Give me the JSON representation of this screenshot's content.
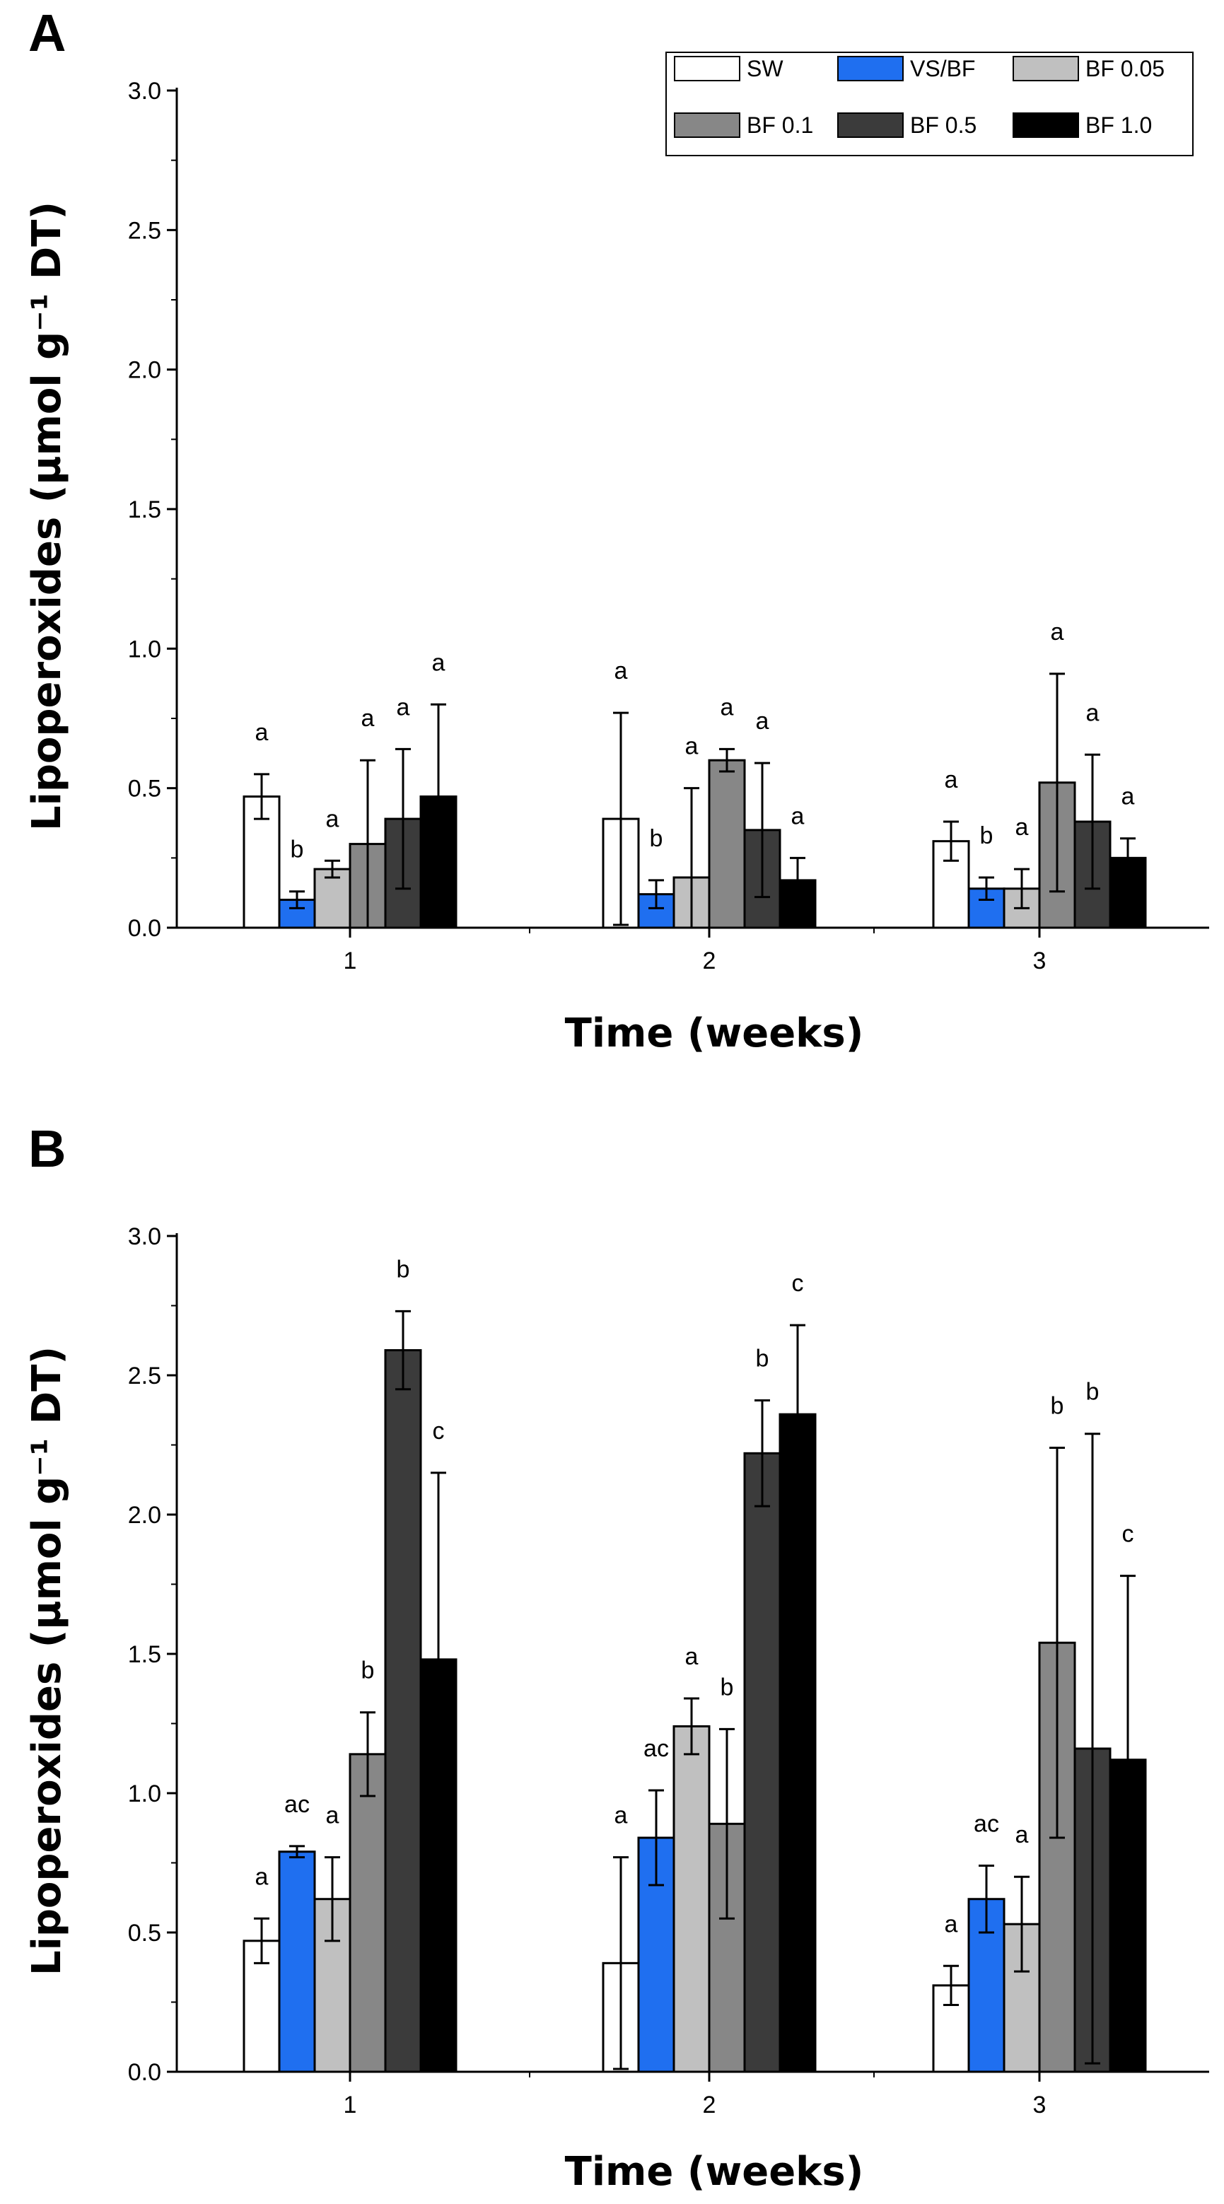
{
  "chart_data": [
    {
      "panel": "A",
      "type": "bar",
      "xlabel": "Time (weeks)",
      "ylabel": "Lipoperoxides (µmol g⁻¹ DT)",
      "categories": [
        "1",
        "2",
        "3"
      ],
      "ylim": [
        0,
        3.0
      ],
      "yticks": [
        "0.0",
        "0.5",
        "1.0",
        "1.5",
        "2.0",
        "2.5",
        "3.0"
      ],
      "legend_position": "top-right",
      "series": [
        {
          "name": "SW",
          "color": "#ffffff",
          "values": [
            0.47,
            0.39,
            0.31
          ],
          "errors": [
            0.08,
            0.38,
            0.07
          ],
          "labels": [
            "a",
            "a",
            "a"
          ]
        },
        {
          "name": "VS/BF",
          "color": "#1f6ff0",
          "values": [
            0.1,
            0.12,
            0.14
          ],
          "errors": [
            0.03,
            0.05,
            0.04
          ],
          "labels": [
            "b",
            "b",
            "b"
          ]
        },
        {
          "name": "BF 0.05",
          "color": "#c0c0c0",
          "values": [
            0.21,
            0.18,
            0.14
          ],
          "errors": [
            0.03,
            0.32,
            0.07
          ],
          "labels": [
            "a",
            "a",
            "a"
          ]
        },
        {
          "name": "BF 0.1",
          "color": "#878787",
          "values": [
            0.3,
            0.6,
            0.52
          ],
          "errors": [
            0.3,
            0.04,
            0.39
          ],
          "labels": [
            "a",
            "a",
            "a"
          ]
        },
        {
          "name": "BF 0.5",
          "color": "#3b3b3b",
          "values": [
            0.39,
            0.35,
            0.38
          ],
          "errors": [
            0.25,
            0.24,
            0.24
          ],
          "labels": [
            "a",
            "a",
            "a"
          ]
        },
        {
          "name": "BF 1.0",
          "color": "#000000",
          "values": [
            0.47,
            0.17,
            0.25
          ],
          "errors": [
            0.33,
            0.08,
            0.07
          ],
          "labels": [
            "a",
            "a",
            "a"
          ]
        }
      ]
    },
    {
      "panel": "B",
      "type": "bar",
      "xlabel": "Time (weeks)",
      "ylabel": "Lipoperoxides (µmol g⁻¹ DT)",
      "categories": [
        "1",
        "2",
        "3"
      ],
      "ylim": [
        0,
        3.0
      ],
      "yticks": [
        "0.0",
        "0.5",
        "1.0",
        "1.5",
        "2.0",
        "2.5",
        "3.0"
      ],
      "series": [
        {
          "name": "SW",
          "color": "#ffffff",
          "values": [
            0.47,
            0.39,
            0.31
          ],
          "errors": [
            0.08,
            0.38,
            0.07
          ],
          "labels": [
            "a",
            "a",
            "a"
          ]
        },
        {
          "name": "VS/BF",
          "color": "#1f6ff0",
          "values": [
            0.79,
            0.84,
            0.62
          ],
          "errors": [
            0.02,
            0.17,
            0.12
          ],
          "labels": [
            "ac",
            "ac",
            "ac"
          ]
        },
        {
          "name": "BF 0.05",
          "color": "#c0c0c0",
          "values": [
            0.62,
            1.24,
            0.53
          ],
          "errors": [
            0.15,
            0.1,
            0.17
          ],
          "labels": [
            "a",
            "a",
            "a"
          ]
        },
        {
          "name": "BF 0.1",
          "color": "#878787",
          "values": [
            1.14,
            0.89,
            1.54
          ],
          "errors": [
            0.15,
            0.34,
            0.7
          ],
          "labels": [
            "b",
            "b",
            "b"
          ]
        },
        {
          "name": "BF 0.5",
          "color": "#3b3b3b",
          "values": [
            2.59,
            2.22,
            1.16
          ],
          "errors": [
            0.14,
            0.19,
            1.13
          ],
          "labels": [
            "b",
            "b",
            "b"
          ]
        },
        {
          "name": "BF 1.0",
          "color": "#000000",
          "values": [
            1.48,
            2.36,
            1.12
          ],
          "errors": [
            0.67,
            0.32,
            0.66
          ],
          "labels": [
            "c",
            "c",
            "c"
          ]
        }
      ]
    }
  ]
}
